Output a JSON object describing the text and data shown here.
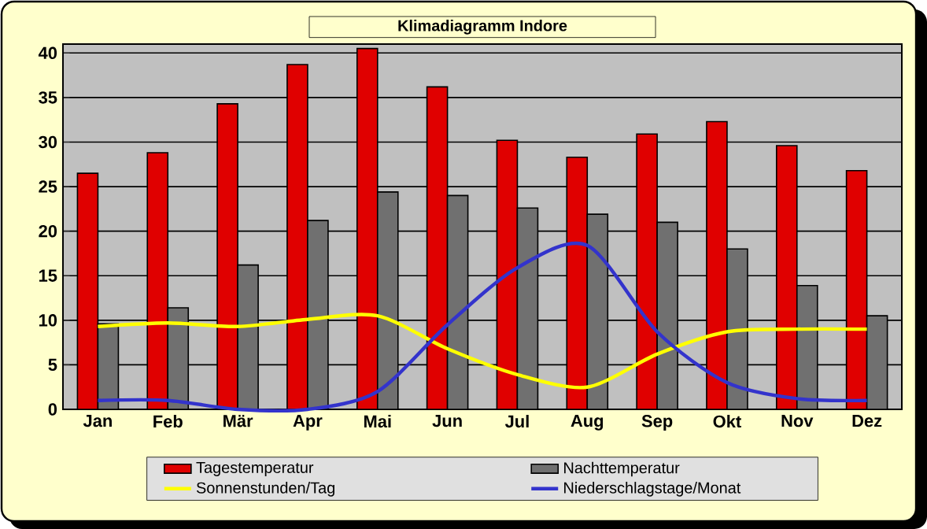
{
  "chart_data": {
    "type": "bar",
    "title": "Klimadiagramm Indore",
    "categories": [
      "Jan",
      "Feb",
      "Mär",
      "Apr",
      "Mai",
      "Jun",
      "Jul",
      "Aug",
      "Sep",
      "Okt",
      "Nov",
      "Dez"
    ],
    "series": [
      {
        "name": "Tagestemperatur",
        "color": "#e00000",
        "values": [
          26.5,
          28.8,
          34.3,
          38.7,
          40.5,
          36.2,
          30.2,
          28.3,
          30.9,
          32.3,
          29.6,
          26.8
        ]
      },
      {
        "name": "Nachttemperatur",
        "color": "#707070",
        "values": [
          9.6,
          11.4,
          16.2,
          21.2,
          24.4,
          24.0,
          22.6,
          21.9,
          21.0,
          18.0,
          13.9,
          10.5
        ]
      },
      {
        "name": "Sonnenstunden/Tag",
        "type": "line",
        "color": "#ffff00",
        "values": [
          9.3,
          9.7,
          9.3,
          10.1,
          10.5,
          6.8,
          3.9,
          2.5,
          6.2,
          8.7,
          9.0,
          9.0
        ]
      },
      {
        "name": "Niederschlagstage/Monat",
        "type": "line",
        "color": "#3333cc",
        "values": [
          1.0,
          1.0,
          0.0,
          0.0,
          2.0,
          9.5,
          15.9,
          18.4,
          8.7,
          3.0,
          1.2,
          1.0
        ]
      }
    ],
    "ylim": [
      0,
      41
    ],
    "yticks": [
      0,
      5,
      10,
      15,
      20,
      25,
      30,
      35,
      40
    ],
    "grid": "y",
    "legend": "bottom"
  }
}
